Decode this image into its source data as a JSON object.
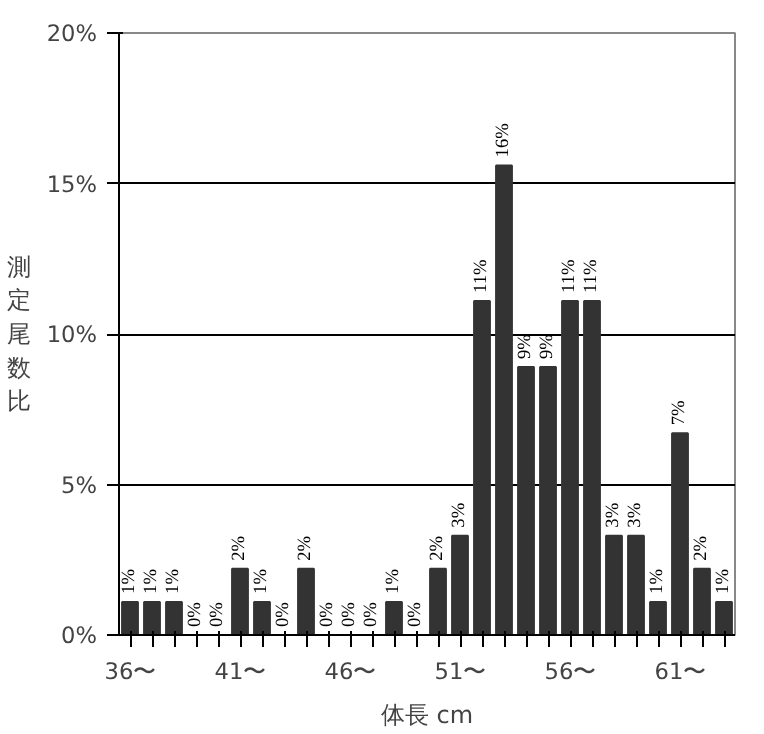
{
  "chart_data": {
    "type": "bar",
    "xlabel": "体長 cm",
    "ylabel": "測定尾数比",
    "categories": [
      "36〜",
      null,
      null,
      null,
      null,
      "41〜",
      null,
      null,
      null,
      null,
      "46〜",
      null,
      null,
      null,
      null,
      "51〜",
      null,
      null,
      null,
      null,
      "56〜",
      null,
      null,
      null,
      null,
      "61〜",
      null,
      null
    ],
    "values": [
      1.1,
      1.1,
      1.1,
      0,
      0,
      2.2,
      1.1,
      0,
      2.2,
      0,
      0,
      0,
      1.1,
      0,
      2.2,
      3.3,
      11.1,
      15.6,
      8.9,
      8.9,
      11.1,
      11.1,
      3.3,
      3.3,
      1.1,
      6.7,
      2.2,
      1.1
    ],
    "value_labels": [
      "1%",
      "1%",
      "1%",
      "0%",
      "0%",
      "2%",
      "1%",
      "0%",
      "2%",
      "0%",
      "0%",
      "0%",
      "1%",
      "0%",
      "2%",
      "3%",
      "11%",
      "16%",
      "9%",
      "9%",
      "11%",
      "11%",
      "3%",
      "3%",
      "1%",
      "7%",
      "2%",
      "1%"
    ],
    "color": "#333333",
    "ylim": [
      0,
      20
    ],
    "yticks": [
      {
        "value": 0,
        "label": "0%"
      },
      {
        "value": 5,
        "label": "5%"
      },
      {
        "value": 10,
        "label": "10%"
      },
      {
        "value": 15,
        "label": "15%"
      },
      {
        "value": 20,
        "label": "20%"
      }
    ],
    "grid": "y"
  }
}
